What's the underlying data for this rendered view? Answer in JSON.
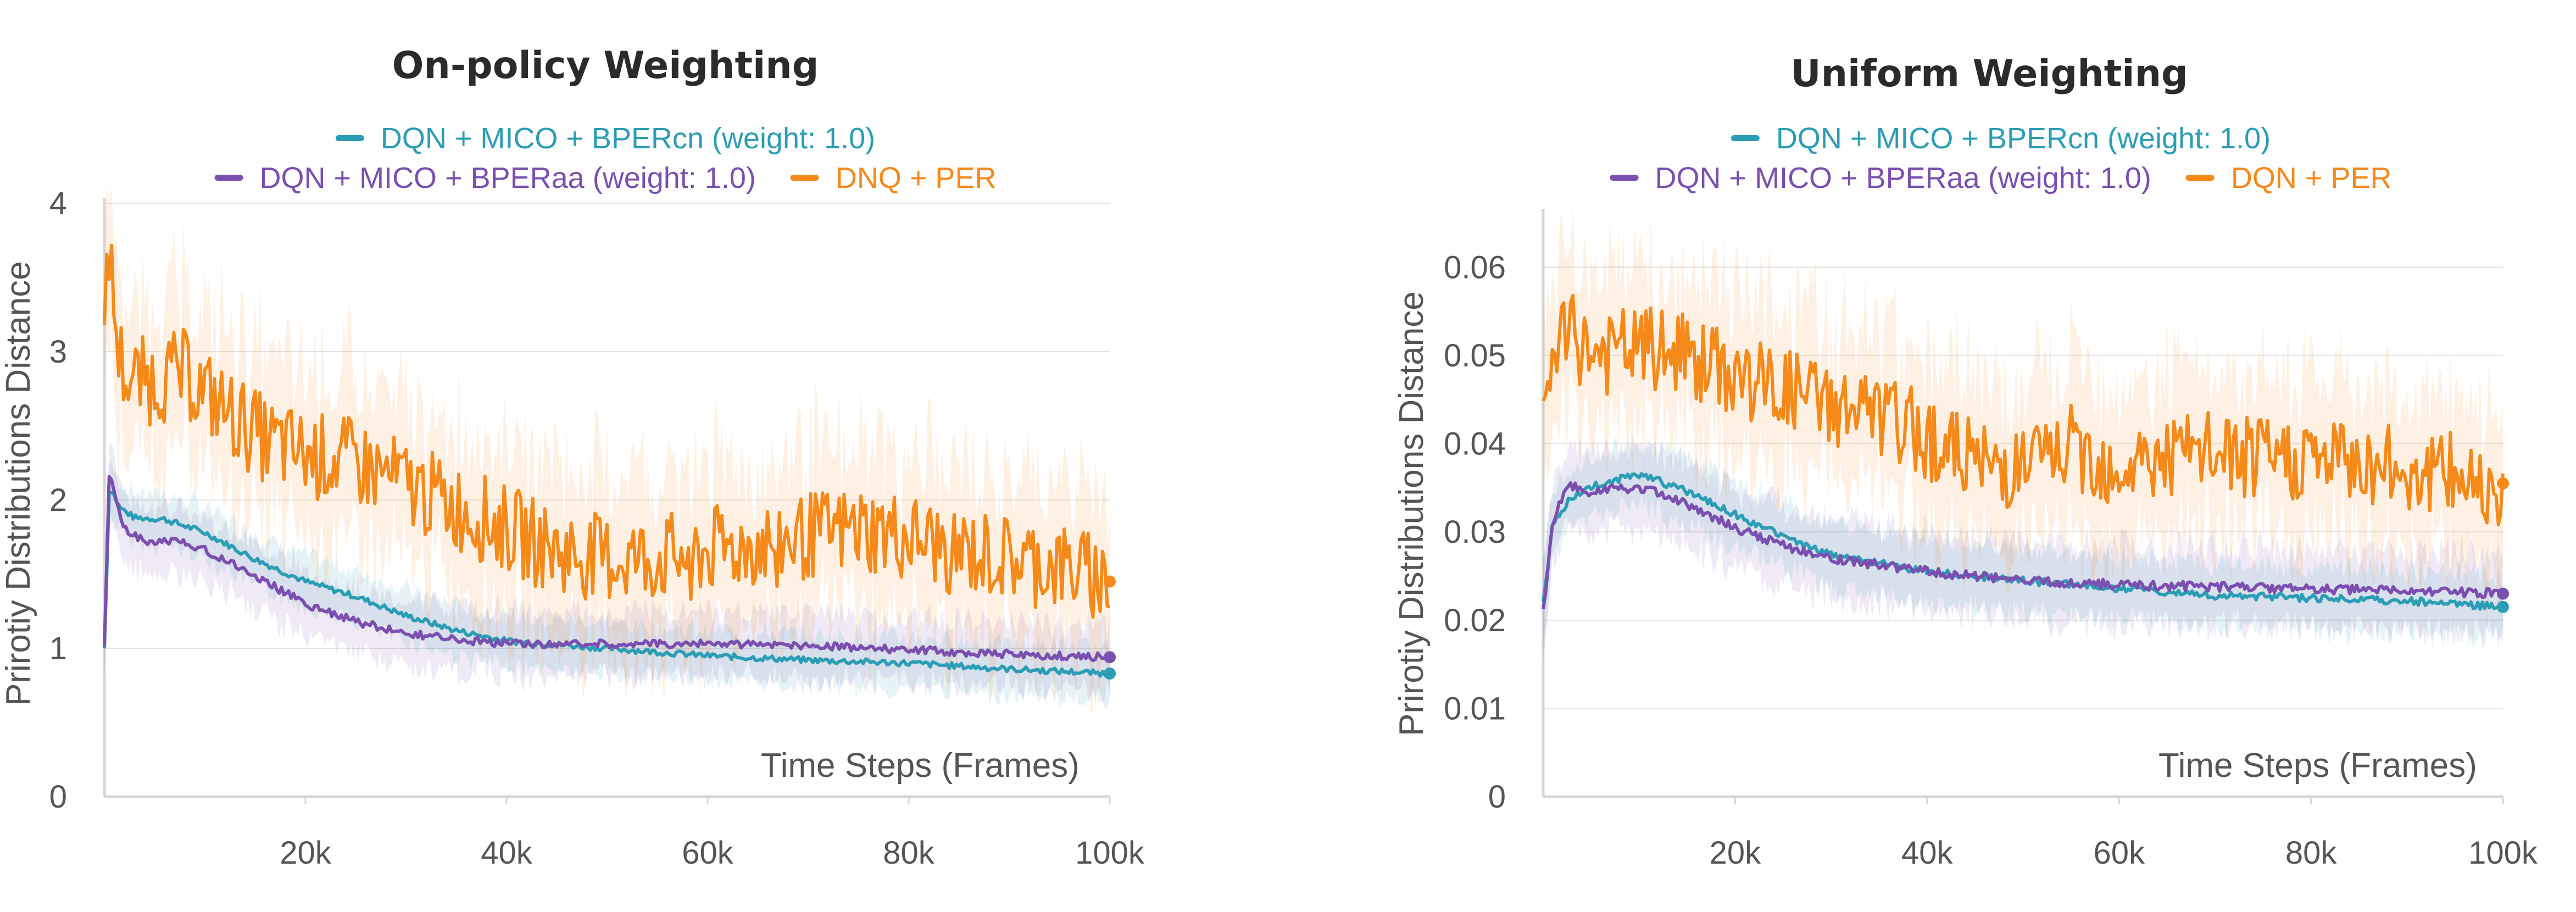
{
  "chart_data": [
    {
      "type": "line",
      "title": "On-policy Weighting",
      "xlabel": "Time Steps (Frames)",
      "ylabel": "Prirotiy Distributions Distance",
      "xlim": [
        0,
        100000
      ],
      "ylim": [
        0,
        4
      ],
      "x_ticks": [
        20000,
        40000,
        60000,
        80000,
        100000
      ],
      "x_tick_labels": [
        "20k",
        "40k",
        "60k",
        "80k",
        "100k"
      ],
      "y_ticks": [
        0,
        1,
        2,
        3,
        4
      ],
      "y_tick_labels": [
        "0",
        "1",
        "2",
        "3",
        "4"
      ],
      "grid": true,
      "legend": "top",
      "series": [
        {
          "name": "DQN + MICO + BPERcn (weight: 1.0)",
          "color": "#2b9db5",
          "band": 0.17,
          "x": [
            0,
            500,
            1500,
            3000,
            6000,
            10000,
            15000,
            20000,
            25000,
            30000,
            35000,
            40000,
            50000,
            60000,
            70000,
            80000,
            90000,
            100000
          ],
          "y": [
            1.0,
            2.1,
            1.95,
            1.88,
            1.87,
            1.78,
            1.6,
            1.45,
            1.35,
            1.22,
            1.12,
            1.05,
            1.0,
            0.95,
            0.92,
            0.9,
            0.86,
            0.83
          ]
        },
        {
          "name": "DQN + MICO + BPERaa (weight: 1.0)",
          "color": "#7b4fb0",
          "band": 0.22,
          "x": [
            0,
            500,
            1000,
            2000,
            4000,
            8000,
            12000,
            16000,
            20000,
            25000,
            30000,
            35000,
            40000,
            50000,
            60000,
            70000,
            80000,
            90000,
            100000
          ],
          "y": [
            1.0,
            2.2,
            2.05,
            1.8,
            1.72,
            1.72,
            1.6,
            1.45,
            1.3,
            1.18,
            1.1,
            1.06,
            1.03,
            1.03,
            1.03,
            1.02,
            0.99,
            0.96,
            0.94
          ]
        },
        {
          "name": "DNQ + PER",
          "color": "#f5891a",
          "band": 0.55,
          "x": [
            0,
            300,
            800,
            1500,
            2500,
            5000,
            8000,
            12000,
            16000,
            20000,
            25000,
            30000,
            35000,
            40000,
            45000,
            50000,
            55000,
            60000,
            65000,
            70000,
            75000,
            80000,
            85000,
            90000,
            95000,
            100000
          ],
          "y": [
            2.9,
            3.9,
            3.4,
            2.95,
            2.8,
            2.8,
            2.85,
            2.6,
            2.4,
            2.3,
            2.25,
            2.1,
            1.95,
            1.8,
            1.65,
            1.6,
            1.6,
            1.65,
            1.7,
            1.75,
            1.8,
            1.75,
            1.65,
            1.6,
            1.55,
            1.45
          ]
        }
      ]
    },
    {
      "type": "line",
      "title": "Uniform Weighting",
      "xlabel": "Time Steps (Frames)",
      "ylabel": "Prirotiy Distributions Distance",
      "xlim": [
        0,
        100000
      ],
      "ylim": [
        0,
        0.066
      ],
      "x_ticks": [
        20000,
        40000,
        60000,
        80000,
        100000
      ],
      "x_tick_labels": [
        "20k",
        "40k",
        "60k",
        "80k",
        "100k"
      ],
      "y_ticks": [
        0,
        0.01,
        0.02,
        0.03,
        0.04,
        0.05,
        0.06
      ],
      "y_tick_labels": [
        "0",
        "0.01",
        "0.02",
        "0.03",
        "0.04",
        "0.05",
        "0.06"
      ],
      "grid": true,
      "legend": "top",
      "series": [
        {
          "name": "DQN + MICO + BPERcn (weight: 1.0)",
          "color": "#2b9db5",
          "band": 0.0035,
          "x": [
            0,
            1000,
            3000,
            6000,
            10000,
            14000,
            18000,
            22000,
            26000,
            30000,
            40000,
            50000,
            60000,
            70000,
            80000,
            90000,
            100000
          ],
          "y": [
            0.022,
            0.031,
            0.034,
            0.0355,
            0.0365,
            0.035,
            0.033,
            0.031,
            0.029,
            0.0275,
            0.0255,
            0.0245,
            0.0235,
            0.0228,
            0.0225,
            0.0222,
            0.0215
          ]
        },
        {
          "name": "DQN + MICO + BPERaa (weight: 1.0)",
          "color": "#7b4fb0",
          "band": 0.0045,
          "x": [
            0,
            1000,
            2500,
            5000,
            8000,
            12000,
            16000,
            20000,
            25000,
            30000,
            40000,
            50000,
            60000,
            70000,
            80000,
            90000,
            100000
          ],
          "y": [
            0.021,
            0.031,
            0.0355,
            0.0345,
            0.035,
            0.0345,
            0.0325,
            0.0305,
            0.0285,
            0.027,
            0.0255,
            0.0245,
            0.024,
            0.0238,
            0.0235,
            0.0233,
            0.023
          ]
        },
        {
          "name": "DQN + PER",
          "color": "#f5891a",
          "band": 0.009,
          "x": [
            0,
            1000,
            3000,
            6000,
            10000,
            14000,
            18000,
            22000,
            26000,
            30000,
            35000,
            40000,
            45000,
            50000,
            55000,
            60000,
            65000,
            70000,
            75000,
            80000,
            85000,
            90000,
            95000,
            100000
          ],
          "y": [
            0.04,
            0.051,
            0.052,
            0.05,
            0.051,
            0.05,
            0.0485,
            0.047,
            0.046,
            0.0445,
            0.043,
            0.041,
            0.0375,
            0.0375,
            0.0395,
            0.0375,
            0.0385,
            0.039,
            0.038,
            0.0385,
            0.038,
            0.037,
            0.0365,
            0.0355
          ]
        }
      ]
    }
  ]
}
